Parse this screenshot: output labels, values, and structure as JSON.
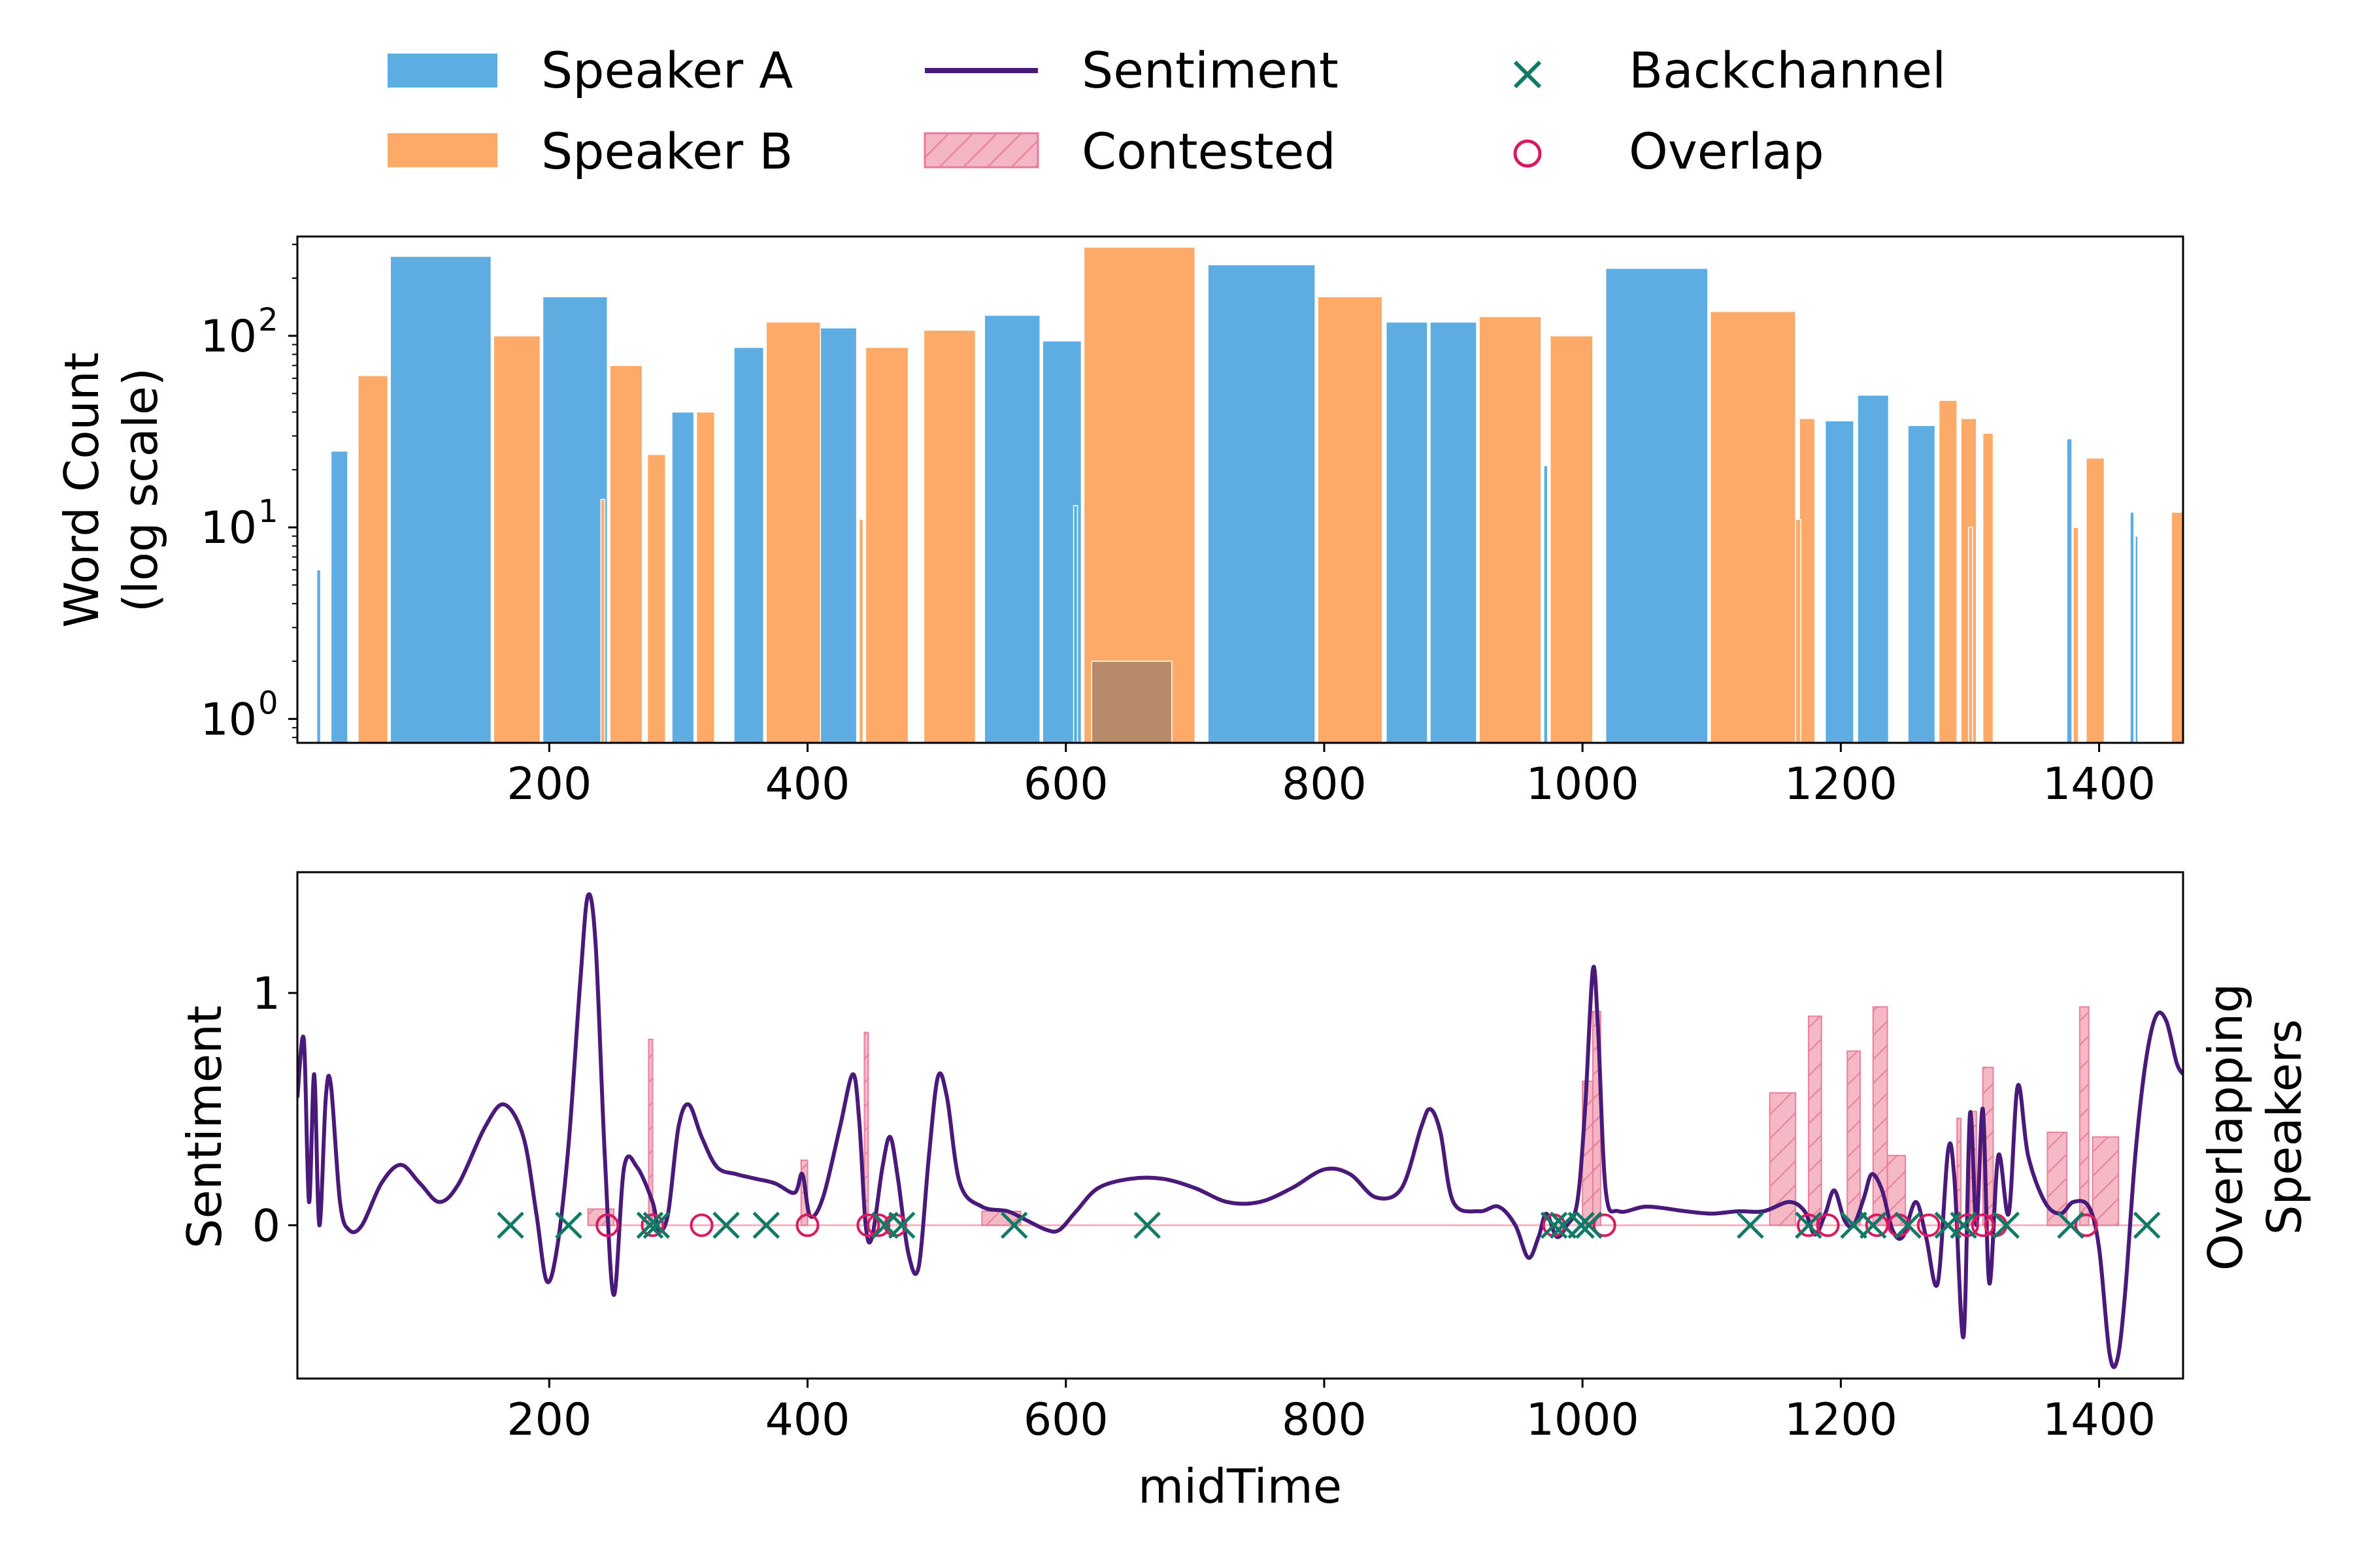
{
  "legend": {
    "placement": "top-center",
    "items": [
      {
        "key": "speaker_a",
        "label": "Speaker A",
        "kind": "patch",
        "color": "#5DADE2"
      },
      {
        "key": "sentiment",
        "label": "Sentiment",
        "kind": "line",
        "color": "#4A1A7A"
      },
      {
        "key": "backchannel",
        "label": "Backchannel",
        "kind": "x-marker",
        "color": "#117A65"
      },
      {
        "key": "speaker_b",
        "label": "Speaker B",
        "kind": "patch",
        "color": "#FDAA68"
      },
      {
        "key": "contested",
        "label": "Contested",
        "kind": "hatched-patch",
        "color": "#F4B6C2"
      },
      {
        "key": "overlap",
        "label": "Overlap",
        "kind": "o-marker",
        "color": "#D81B60"
      }
    ]
  },
  "chart_data": [
    {
      "type": "bar",
      "panel": "top",
      "ylabel_line1": "Word Count",
      "ylabel_line2": "(log scale)",
      "xlabel": "",
      "yscale": "log",
      "xlim": [
        5,
        1465
      ],
      "ylim": [
        0.75,
        330
      ],
      "xticks": [
        200,
        400,
        600,
        800,
        1000,
        1200,
        1400
      ],
      "yticks": [
        {
          "value": 1,
          "base": "10",
          "exp": "0"
        },
        {
          "value": 10,
          "base": "10",
          "exp": "1"
        },
        {
          "value": 100,
          "base": "10",
          "exp": "2"
        }
      ],
      "grid": false,
      "colors": {
        "A": "#5DADE2",
        "B": "#FDAA68",
        "overlap": "#B78A6A"
      },
      "series": [
        {
          "name": "Speaker A",
          "bars": [
            {
              "x0": 31,
              "x1": 44,
              "value": 25
            },
            {
              "x0": 77,
              "x1": 155,
              "value": 260
            },
            {
              "x0": 195,
              "x1": 245,
              "value": 160
            },
            {
              "x0": 295,
              "x1": 312,
              "value": 40
            },
            {
              "x0": 343,
              "x1": 366,
              "value": 87
            },
            {
              "x0": 400,
              "x1": 438,
              "value": 110
            },
            {
              "x0": 537,
              "x1": 580,
              "value": 128
            },
            {
              "x0": 582,
              "x1": 612,
              "value": 94
            },
            {
              "x0": 710,
              "x1": 793,
              "value": 235
            },
            {
              "x0": 848,
              "x1": 880,
              "value": 118
            },
            {
              "x0": 882,
              "x1": 918,
              "value": 118
            },
            {
              "x0": 1018,
              "x1": 1097,
              "value": 225
            },
            {
              "x0": 1188,
              "x1": 1210,
              "value": 36
            },
            {
              "x0": 1213,
              "x1": 1237,
              "value": 49
            },
            {
              "x0": 1252,
              "x1": 1273,
              "value": 34
            },
            {
              "x0": 20,
              "x1": 23,
              "value": 6
            },
            {
              "x0": 606,
              "x1": 609,
              "value": 13
            },
            {
              "x0": 970,
              "x1": 973,
              "value": 21
            },
            {
              "x0": 1005,
              "x1": 1008,
              "value": 9
            },
            {
              "x0": 1375,
              "x1": 1379,
              "value": 29
            },
            {
              "x0": 1424,
              "x1": 1427,
              "value": 12
            },
            {
              "x0": 1428,
              "x1": 1430,
              "value": 9
            }
          ]
        },
        {
          "name": "Speaker B",
          "bars": [
            {
              "x0": 52,
              "x1": 75,
              "value": 62
            },
            {
              "x0": 157,
              "x1": 193,
              "value": 100
            },
            {
              "x0": 247,
              "x1": 272,
              "value": 70
            },
            {
              "x0": 276,
              "x1": 290,
              "value": 24
            },
            {
              "x0": 314,
              "x1": 328,
              "value": 40
            },
            {
              "x0": 368,
              "x1": 410,
              "value": 118
            },
            {
              "x0": 445,
              "x1": 478,
              "value": 87
            },
            {
              "x0": 490,
              "x1": 530,
              "value": 107
            },
            {
              "x0": 614,
              "x1": 700,
              "value": 290
            },
            {
              "x0": 795,
              "x1": 845,
              "value": 160
            },
            {
              "x0": 920,
              "x1": 968,
              "value": 126
            },
            {
              "x0": 975,
              "x1": 1008,
              "value": 100
            },
            {
              "x0": 1099,
              "x1": 1165,
              "value": 134
            },
            {
              "x0": 1168,
              "x1": 1180,
              "value": 37
            },
            {
              "x0": 1276,
              "x1": 1290,
              "value": 46
            },
            {
              "x0": 1293,
              "x1": 1305,
              "value": 37
            },
            {
              "x0": 1310,
              "x1": 1318,
              "value": 31
            },
            {
              "x0": 1390,
              "x1": 1404,
              "value": 23
            },
            {
              "x0": 1456,
              "x1": 1465,
              "value": 12
            },
            {
              "x0": 240,
              "x1": 243,
              "value": 14
            },
            {
              "x0": 440,
              "x1": 443,
              "value": 11
            },
            {
              "x0": 1165,
              "x1": 1169,
              "value": 11
            },
            {
              "x0": 1380,
              "x1": 1384,
              "value": 10
            },
            {
              "x0": 1299,
              "x1": 1302,
              "value": 10
            }
          ]
        },
        {
          "name": "",
          "bars": [
            {
              "x0": 620,
              "x1": 682,
              "value": 2
            }
          ]
        }
      ]
    },
    {
      "type": "line",
      "panel": "bottom",
      "xlabel": "midTime",
      "ylabel": "Sentiment",
      "ylabel_right_line1": "Overlapping",
      "ylabel_right_line2": "Speakers",
      "xlim": [
        5,
        1465
      ],
      "ylim": [
        -0.66,
        1.52
      ],
      "xticks": [
        200,
        400,
        600,
        800,
        1000,
        1200,
        1400
      ],
      "yticks": [
        0,
        1
      ],
      "grid": false,
      "series": [
        {
          "name": "Sentiment",
          "color": "#4A1A7A",
          "points": [
            [
              5,
              0.55
            ],
            [
              10,
              0.8
            ],
            [
              14,
              0.1
            ],
            [
              18,
              0.65
            ],
            [
              22,
              0.0
            ],
            [
              27,
              0.55
            ],
            [
              31,
              0.6
            ],
            [
              38,
              0.1
            ],
            [
              45,
              -0.02
            ],
            [
              55,
              0.0
            ],
            [
              70,
              0.18
            ],
            [
              85,
              0.26
            ],
            [
              100,
              0.18
            ],
            [
              115,
              0.1
            ],
            [
              130,
              0.18
            ],
            [
              150,
              0.42
            ],
            [
              165,
              0.52
            ],
            [
              180,
              0.38
            ],
            [
              190,
              0.05
            ],
            [
              198,
              -0.24
            ],
            [
              206,
              -0.1
            ],
            [
              215,
              0.35
            ],
            [
              224,
              1.05
            ],
            [
              230,
              1.42
            ],
            [
              236,
              1.2
            ],
            [
              243,
              0.3
            ],
            [
              250,
              -0.3
            ],
            [
              258,
              0.25
            ],
            [
              268,
              0.25
            ],
            [
              280,
              0.1
            ],
            [
              285,
              -0.02
            ],
            [
              292,
              0.05
            ],
            [
              300,
              0.42
            ],
            [
              308,
              0.52
            ],
            [
              318,
              0.38
            ],
            [
              330,
              0.25
            ],
            [
              345,
              0.22
            ],
            [
              360,
              0.2
            ],
            [
              375,
              0.18
            ],
            [
              390,
              0.14
            ],
            [
              396,
              0.22
            ],
            [
              402,
              0.04
            ],
            [
              412,
              0.12
            ],
            [
              425,
              0.42
            ],
            [
              435,
              0.65
            ],
            [
              440,
              0.45
            ],
            [
              445,
              0.0
            ],
            [
              450,
              -0.05
            ],
            [
              458,
              0.25
            ],
            [
              464,
              0.38
            ],
            [
              470,
              0.2
            ],
            [
              478,
              -0.12
            ],
            [
              486,
              -0.18
            ],
            [
              494,
              0.3
            ],
            [
              501,
              0.64
            ],
            [
              508,
              0.55
            ],
            [
              518,
              0.18
            ],
            [
              535,
              0.08
            ],
            [
              555,
              0.06
            ],
            [
              570,
              0.02
            ],
            [
              585,
              -0.02
            ],
            [
              595,
              -0.02
            ],
            [
              608,
              0.06
            ],
            [
              625,
              0.16
            ],
            [
              650,
              0.2
            ],
            [
              675,
              0.2
            ],
            [
              700,
              0.16
            ],
            [
              725,
              0.1
            ],
            [
              750,
              0.1
            ],
            [
              775,
              0.16
            ],
            [
              800,
              0.24
            ],
            [
              820,
              0.22
            ],
            [
              840,
              0.12
            ],
            [
              860,
              0.16
            ],
            [
              875,
              0.42
            ],
            [
              882,
              0.5
            ],
            [
              890,
              0.4
            ],
            [
              900,
              0.1
            ],
            [
              920,
              0.06
            ],
            [
              935,
              0.08
            ],
            [
              948,
              0.0
            ],
            [
              958,
              -0.14
            ],
            [
              966,
              -0.05
            ],
            [
              972,
              0.05
            ],
            [
              980,
              -0.05
            ],
            [
              988,
              0.0
            ],
            [
              996,
              0.1
            ],
            [
              1002,
              0.5
            ],
            [
              1008,
              1.1
            ],
            [
              1012,
              0.85
            ],
            [
              1018,
              0.15
            ],
            [
              1028,
              0.06
            ],
            [
              1050,
              0.08
            ],
            [
              1080,
              0.06
            ],
            [
              1100,
              0.05
            ],
            [
              1120,
              0.06
            ],
            [
              1140,
              0.06
            ],
            [
              1160,
              0.1
            ],
            [
              1172,
              0.06
            ],
            [
              1180,
              -0.04
            ],
            [
              1188,
              0.05
            ],
            [
              1195,
              0.15
            ],
            [
              1203,
              0.02
            ],
            [
              1210,
              0.0
            ],
            [
              1218,
              0.12
            ],
            [
              1224,
              0.22
            ],
            [
              1232,
              0.15
            ],
            [
              1240,
              -0.02
            ],
            [
              1248,
              -0.05
            ],
            [
              1258,
              0.1
            ],
            [
              1266,
              -0.05
            ],
            [
              1275,
              -0.25
            ],
            [
              1283,
              0.32
            ],
            [
              1288,
              0.2
            ],
            [
              1295,
              -0.48
            ],
            [
              1300,
              0.48
            ],
            [
              1305,
              0.0
            ],
            [
              1310,
              0.5
            ],
            [
              1315,
              -0.25
            ],
            [
              1322,
              0.3
            ],
            [
              1330,
              0.05
            ],
            [
              1337,
              0.6
            ],
            [
              1345,
              0.3
            ],
            [
              1358,
              0.1
            ],
            [
              1370,
              0.05
            ],
            [
              1380,
              0.1
            ],
            [
              1392,
              0.08
            ],
            [
              1400,
              -0.1
            ],
            [
              1408,
              -0.55
            ],
            [
              1414,
              -0.58
            ],
            [
              1420,
              -0.3
            ],
            [
              1428,
              0.3
            ],
            [
              1436,
              0.7
            ],
            [
              1444,
              0.9
            ],
            [
              1452,
              0.88
            ],
            [
              1460,
              0.7
            ],
            [
              1465,
              0.65
            ]
          ]
        },
        {
          "name": "Contested",
          "color": "#F4B6C2",
          "bars": [
            [
              230,
              250,
              0.07
            ],
            [
              277,
              280,
              0.8
            ],
            [
              395,
              400,
              0.28
            ],
            [
              444,
              447,
              0.83
            ],
            [
              535,
              565,
              0.06
            ],
            [
              1000,
              1012,
              0.62
            ],
            [
              1008,
              1014,
              0.92
            ],
            [
              1145,
              1165,
              0.57
            ],
            [
              1175,
              1185,
              0.9
            ],
            [
              1205,
              1215,
              0.75
            ],
            [
              1225,
              1236,
              0.94
            ],
            [
              1236,
              1250,
              0.3
            ],
            [
              1290,
              1293,
              0.46
            ],
            [
              1300,
              1305,
              0.49
            ],
            [
              1310,
              1318,
              0.68
            ],
            [
              1360,
              1375,
              0.4
            ],
            [
              1385,
              1392,
              0.94
            ],
            [
              1395,
              1415,
              0.38
            ]
          ]
        },
        {
          "name": "Backchannel",
          "color": "#117A65",
          "x": [
            170,
            215,
            278,
            283,
            337,
            368,
            460,
            473,
            560,
            663,
            978,
            985,
            999,
            1005,
            1130,
            1175,
            1210,
            1225,
            1252,
            1283,
            1295,
            1328,
            1378,
            1437
          ]
        },
        {
          "name": "Overlap",
          "color": "#D81B60",
          "x": [
            245,
            280,
            318,
            400,
            447,
            455,
            468,
            978,
            1017,
            1175,
            1190,
            1228,
            1245,
            1268,
            1298,
            1310,
            1320,
            1390
          ]
        }
      ]
    }
  ]
}
